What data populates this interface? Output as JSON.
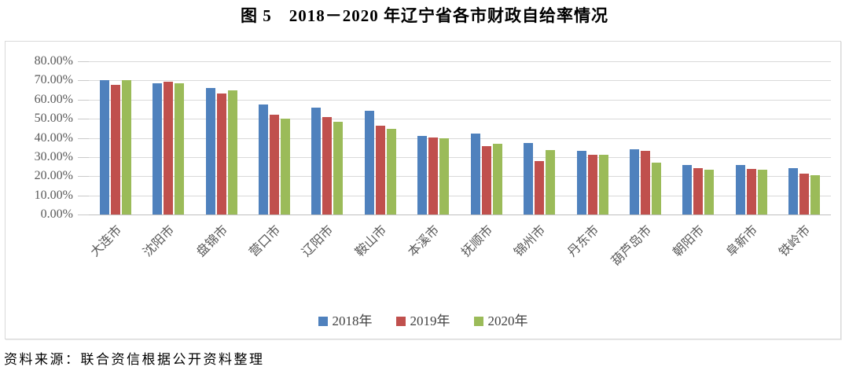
{
  "page": {
    "source_note": "资料来源：联合资信根据公开资料整理"
  },
  "chart_data": {
    "type": "bar",
    "title": "图 5　2018－2020 年辽宁省各市财政自给率情况",
    "categories": [
      "大连市",
      "沈阳市",
      "盘锦市",
      "营口市",
      "辽阳市",
      "鞍山市",
      "本溪市",
      "抚顺市",
      "锦州市",
      "丹东市",
      "葫芦岛市",
      "朝阳市",
      "阜新市",
      "铁岭市"
    ],
    "series": [
      {
        "name": "2018年",
        "color": "#4F81BD",
        "values": [
          70.2,
          68.6,
          65.9,
          57.6,
          55.9,
          54.3,
          41.0,
          42.3,
          37.2,
          33.4,
          34.0,
          25.9,
          25.8,
          24.1
        ]
      },
      {
        "name": "2019年",
        "color": "#C0504D",
        "values": [
          67.9,
          69.5,
          63.2,
          52.3,
          51.0,
          46.4,
          40.4,
          35.8,
          28.0,
          31.2,
          33.4,
          24.2,
          23.7,
          21.4
        ]
      },
      {
        "name": "2020年",
        "color": "#9BBB59",
        "values": [
          70.1,
          68.4,
          64.9,
          50.0,
          48.4,
          44.6,
          39.9,
          37.1,
          33.8,
          31.0,
          27.0,
          23.5,
          23.2,
          20.7
        ]
      }
    ],
    "ylabel": "",
    "xlabel": "",
    "ylim": [
      0,
      80
    ],
    "y_tick_labels": [
      "80.00%",
      "70.00%",
      "60.00%",
      "50.00%",
      "40.00%",
      "30.00%",
      "20.00%",
      "10.00%",
      "0.00%"
    ],
    "y_tick_step": 10,
    "grid": true,
    "legend_position": "bottom",
    "colors": {
      "grid_line": "#D9D9D9",
      "axis_line": "#BFBFBF",
      "tick_text": "#595959",
      "frame_border": "#D9D9D9"
    }
  }
}
